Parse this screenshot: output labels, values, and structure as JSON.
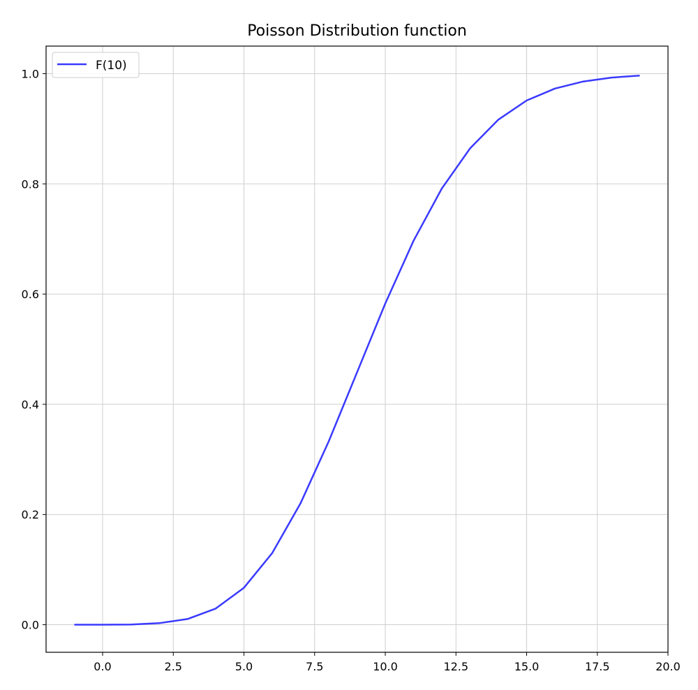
{
  "chart_data": {
    "type": "line",
    "title": "Poisson Distribution function",
    "xlabel": "",
    "ylabel": "",
    "xlim": [
      -2,
      20
    ],
    "ylim": [
      -0.05,
      1.05
    ],
    "grid": true,
    "legend_position": "top-left",
    "x_ticks": [
      0.0,
      2.5,
      5.0,
      7.5,
      10.0,
      12.5,
      15.0,
      17.5,
      20.0
    ],
    "x_tick_labels": [
      "0.0",
      "2.5",
      "5.0",
      "7.5",
      "10.0",
      "12.5",
      "15.0",
      "17.5",
      "20.0"
    ],
    "y_ticks": [
      0.0,
      0.2,
      0.4,
      0.6,
      0.8,
      1.0
    ],
    "y_tick_labels": [
      "0.0",
      "0.2",
      "0.4",
      "0.6",
      "0.8",
      "1.0"
    ],
    "series": [
      {
        "name": "F(10)",
        "color": "#3a3aff",
        "x": [
          -1,
          0,
          1,
          2,
          3,
          4,
          5,
          6,
          7,
          8,
          9,
          10,
          11,
          12,
          13,
          14,
          15,
          16,
          17,
          18,
          19
        ],
        "y": [
          0.0,
          0.0,
          0.0005,
          0.0028,
          0.0103,
          0.0293,
          0.0671,
          0.1301,
          0.2202,
          0.3328,
          0.4579,
          0.583,
          0.6968,
          0.7916,
          0.8645,
          0.9165,
          0.9513,
          0.973,
          0.9857,
          0.9928,
          0.9965
        ]
      }
    ]
  }
}
